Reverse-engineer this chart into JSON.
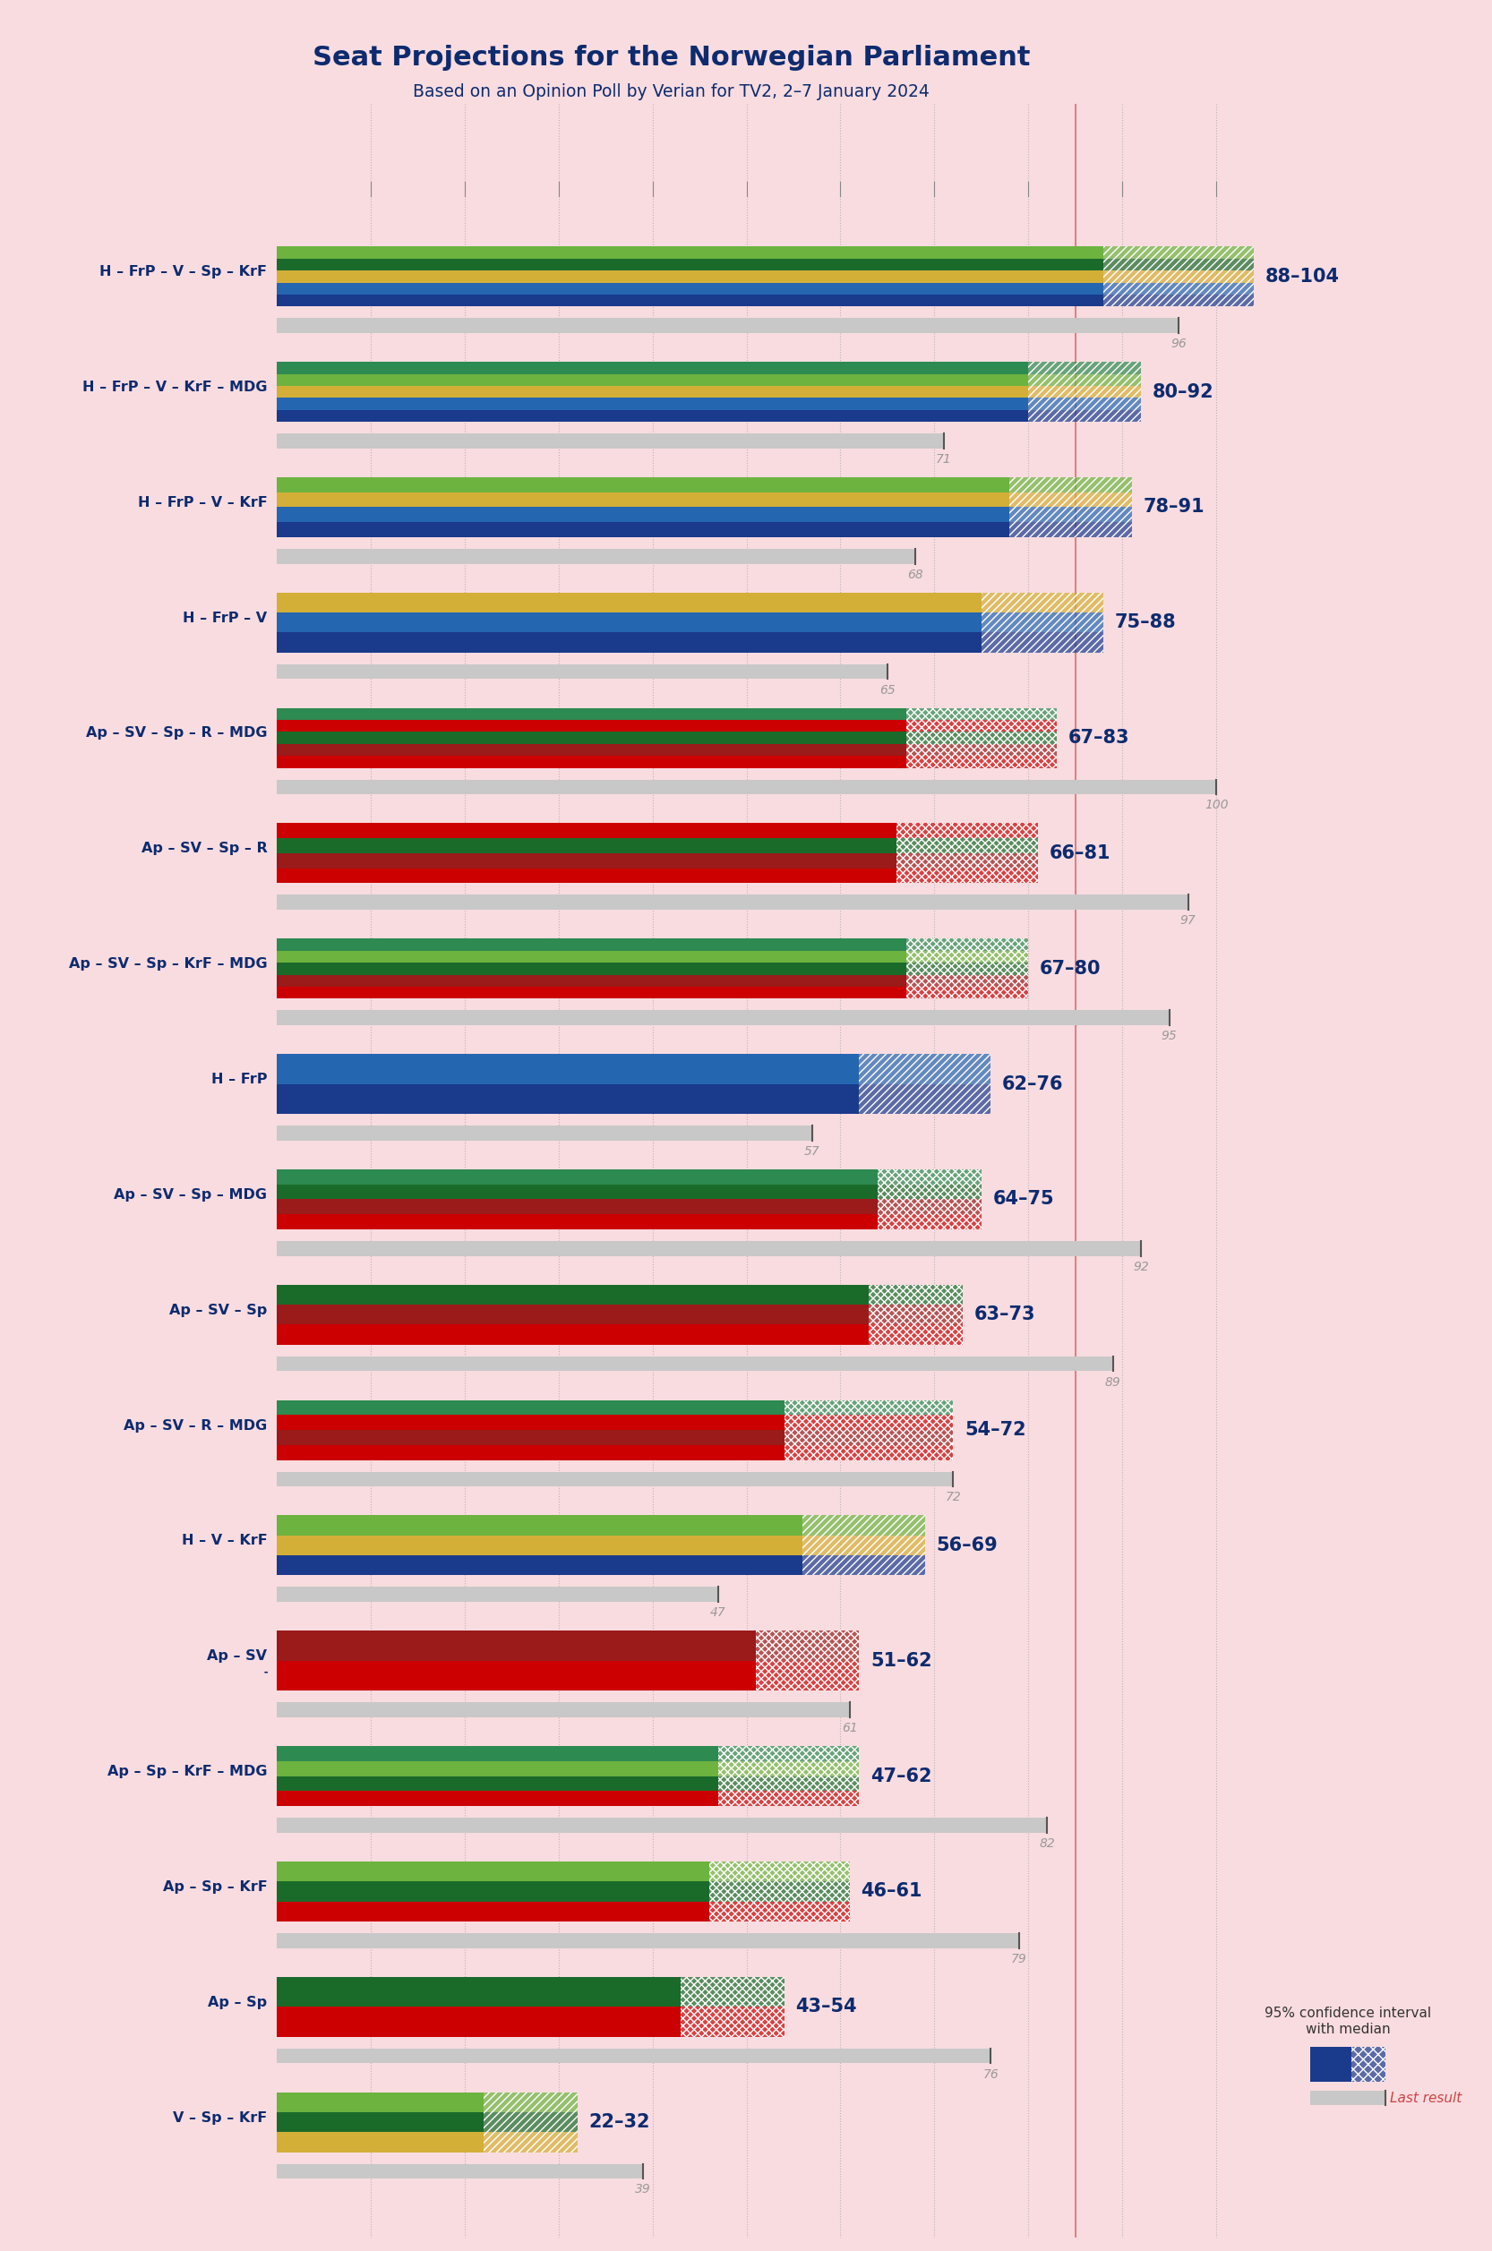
{
  "title": "Seat Projections for the Norwegian Parliament",
  "subtitle": "Based on an Opinion Poll by Verian for TV2, 2–7 January 2024",
  "background_color": "#f9dce0",
  "title_color": "#0d2b6e",
  "subtitle_color": "#0d2b6e",
  "coalitions": [
    {
      "label": "H – FrP – V – Sp – KrF",
      "range_low": 88,
      "range_high": 104,
      "last": 96,
      "parties": [
        "H",
        "FrP",
        "V",
        "Sp",
        "KrF"
      ],
      "hatch_style": "diagonal"
    },
    {
      "label": "H – FrP – V – KrF – MDG",
      "range_low": 80,
      "range_high": 92,
      "last": 71,
      "parties": [
        "H",
        "FrP",
        "V",
        "KrF",
        "MDG"
      ],
      "hatch_style": "diagonal"
    },
    {
      "label": "H – FrP – V – KrF",
      "range_low": 78,
      "range_high": 91,
      "last": 68,
      "parties": [
        "H",
        "FrP",
        "V",
        "KrF"
      ],
      "hatch_style": "diagonal"
    },
    {
      "label": "H – FrP – V",
      "range_low": 75,
      "range_high": 88,
      "last": 65,
      "parties": [
        "H",
        "FrP",
        "V"
      ],
      "hatch_style": "diagonal"
    },
    {
      "label": "Ap – SV – Sp – R – MDG",
      "range_low": 67,
      "range_high": 83,
      "last": 100,
      "parties": [
        "Ap",
        "SV",
        "Sp",
        "R",
        "MDG"
      ],
      "hatch_style": "cross"
    },
    {
      "label": "Ap – SV – Sp – R",
      "range_low": 66,
      "range_high": 81,
      "last": 97,
      "parties": [
        "Ap",
        "SV",
        "Sp",
        "R"
      ],
      "hatch_style": "cross"
    },
    {
      "label": "Ap – SV – Sp – KrF – MDG",
      "range_low": 67,
      "range_high": 80,
      "last": 95,
      "parties": [
        "Ap",
        "SV",
        "Sp",
        "KrF",
        "MDG"
      ],
      "hatch_style": "cross"
    },
    {
      "label": "H – FrP",
      "range_low": 62,
      "range_high": 76,
      "last": 57,
      "parties": [
        "H",
        "FrP"
      ],
      "hatch_style": "diagonal"
    },
    {
      "label": "Ap – SV – Sp – MDG",
      "range_low": 64,
      "range_high": 75,
      "last": 92,
      "parties": [
        "Ap",
        "SV",
        "Sp",
        "MDG"
      ],
      "hatch_style": "cross"
    },
    {
      "label": "Ap – SV – Sp",
      "range_low": 63,
      "range_high": 73,
      "last": 89,
      "parties": [
        "Ap",
        "SV",
        "Sp"
      ],
      "hatch_style": "cross"
    },
    {
      "label": "Ap – SV – R – MDG",
      "range_low": 54,
      "range_high": 72,
      "last": 72,
      "parties": [
        "Ap",
        "SV",
        "R",
        "MDG"
      ],
      "hatch_style": "cross"
    },
    {
      "label": "H – V – KrF",
      "range_low": 56,
      "range_high": 69,
      "last": 47,
      "parties": [
        "H",
        "V",
        "KrF"
      ],
      "hatch_style": "diagonal"
    },
    {
      "label": "Ap – SV",
      "range_low": 51,
      "range_high": 62,
      "last": 61,
      "parties": [
        "Ap",
        "SV"
      ],
      "hatch_style": "cross",
      "underline": true
    },
    {
      "label": "Ap – Sp – KrF – MDG",
      "range_low": 47,
      "range_high": 62,
      "last": 82,
      "parties": [
        "Ap",
        "Sp",
        "KrF",
        "MDG"
      ],
      "hatch_style": "cross"
    },
    {
      "label": "Ap – Sp – KrF",
      "range_low": 46,
      "range_high": 61,
      "last": 79,
      "parties": [
        "Ap",
        "Sp",
        "KrF"
      ],
      "hatch_style": "cross"
    },
    {
      "label": "Ap – Sp",
      "range_low": 43,
      "range_high": 54,
      "last": 76,
      "parties": [
        "Ap",
        "Sp"
      ],
      "hatch_style": "cross"
    },
    {
      "label": "V – Sp – KrF",
      "range_low": 22,
      "range_high": 32,
      "last": 39,
      "parties": [
        "V",
        "Sp",
        "KrF"
      ],
      "hatch_style": "diagonal"
    }
  ],
  "party_colors": {
    "H": "#1a3a8c",
    "FrP": "#2566b0",
    "V": "#d4af37",
    "Sp": "#1a6b2a",
    "KrF": "#6db33f",
    "MDG": "#2d8a50",
    "Ap": "#cc0000",
    "SV": "#9b1a1a",
    "R": "#cc0000"
  },
  "x_max": 105,
  "majority_line": 85,
  "ci_color": "#c8c8c8",
  "gridline_color": "#aaaaaa",
  "label_color": "#0d2b6e",
  "last_color": "#999999"
}
